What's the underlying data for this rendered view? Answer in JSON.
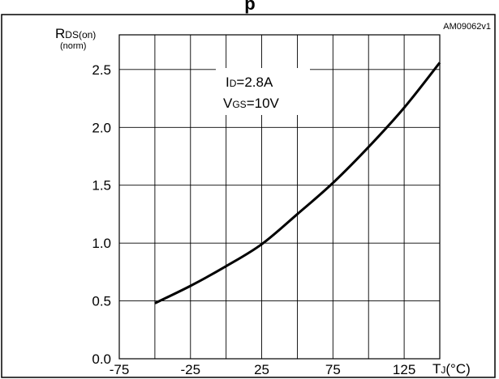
{
  "chart_data": {
    "type": "line",
    "title_fragment": "p",
    "figure_id": "AM09062v1",
    "ylabel": {
      "main": "R",
      "sub": "DS(on)",
      "unit": "(norm)"
    },
    "xlabel": {
      "main": "T",
      "sub": "J",
      "unit": "(°C)"
    },
    "annotation": {
      "line1": {
        "main": "I",
        "sub": "D",
        "rest": "=2.8A"
      },
      "line2": {
        "main": "V",
        "sub": "GS",
        "rest": "=10V"
      }
    },
    "xlim": [
      -75,
      150
    ],
    "ylim": [
      0,
      2.8
    ],
    "x_ticks": [
      -75,
      -25,
      25,
      75,
      125
    ],
    "x_tick_labels": [
      "-75",
      "-25",
      "25",
      "75",
      "125"
    ],
    "y_ticks": [
      0,
      0.5,
      1.0,
      1.5,
      2.0,
      2.5
    ],
    "y_tick_labels": [
      "0.0",
      "0.5",
      "1.0",
      "1.5",
      "2.0",
      "2.5"
    ],
    "x_gridlines": [
      -75,
      -50,
      -25,
      0,
      25,
      50,
      75,
      100,
      125,
      150
    ],
    "y_gridlines": [
      0,
      0.5,
      1.0,
      1.5,
      2.0,
      2.5
    ],
    "grid": true,
    "series": [
      {
        "x": [
          -50,
          -25,
          0,
          25,
          50,
          75,
          100,
          125,
          150
        ],
        "y": [
          0.48,
          0.63,
          0.8,
          0.99,
          1.25,
          1.52,
          1.83,
          2.17,
          2.56
        ]
      }
    ]
  }
}
